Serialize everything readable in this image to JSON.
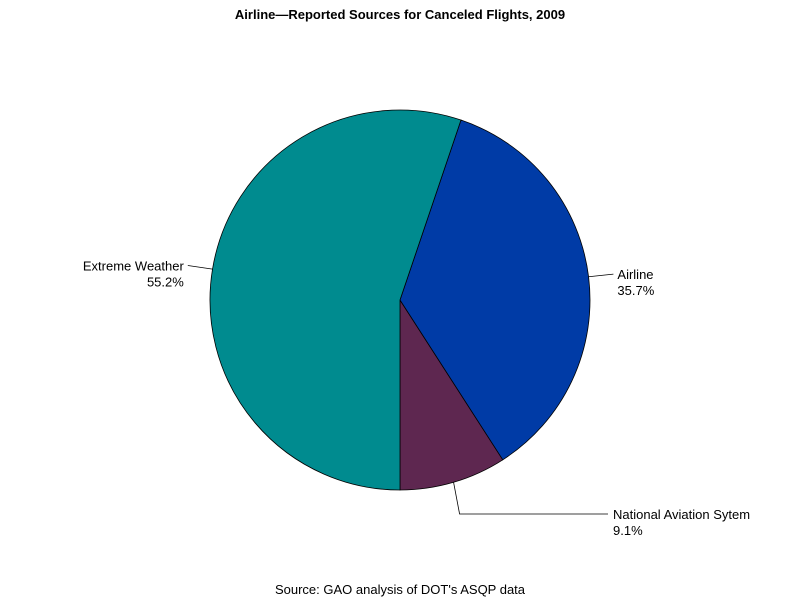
{
  "chart_data": {
    "type": "pie",
    "title": "Airline—Reported Sources for Canceled Flights, 2009",
    "footnote": "Source: GAO analysis of DOT's ASQP data",
    "slices": [
      {
        "label": "National Aviation Sytem",
        "value": 9.1,
        "value_label": "9.1%",
        "color": "#5E2750"
      },
      {
        "label": "Airline",
        "value": 35.7,
        "value_label": "35.7%",
        "color": "#003BA6"
      },
      {
        "label": "Extreme Weather",
        "value": 55.2,
        "value_label": "55.2%",
        "color": "#008B8F"
      }
    ],
    "start_angle": "bottom",
    "direction": "counterclockwise"
  }
}
